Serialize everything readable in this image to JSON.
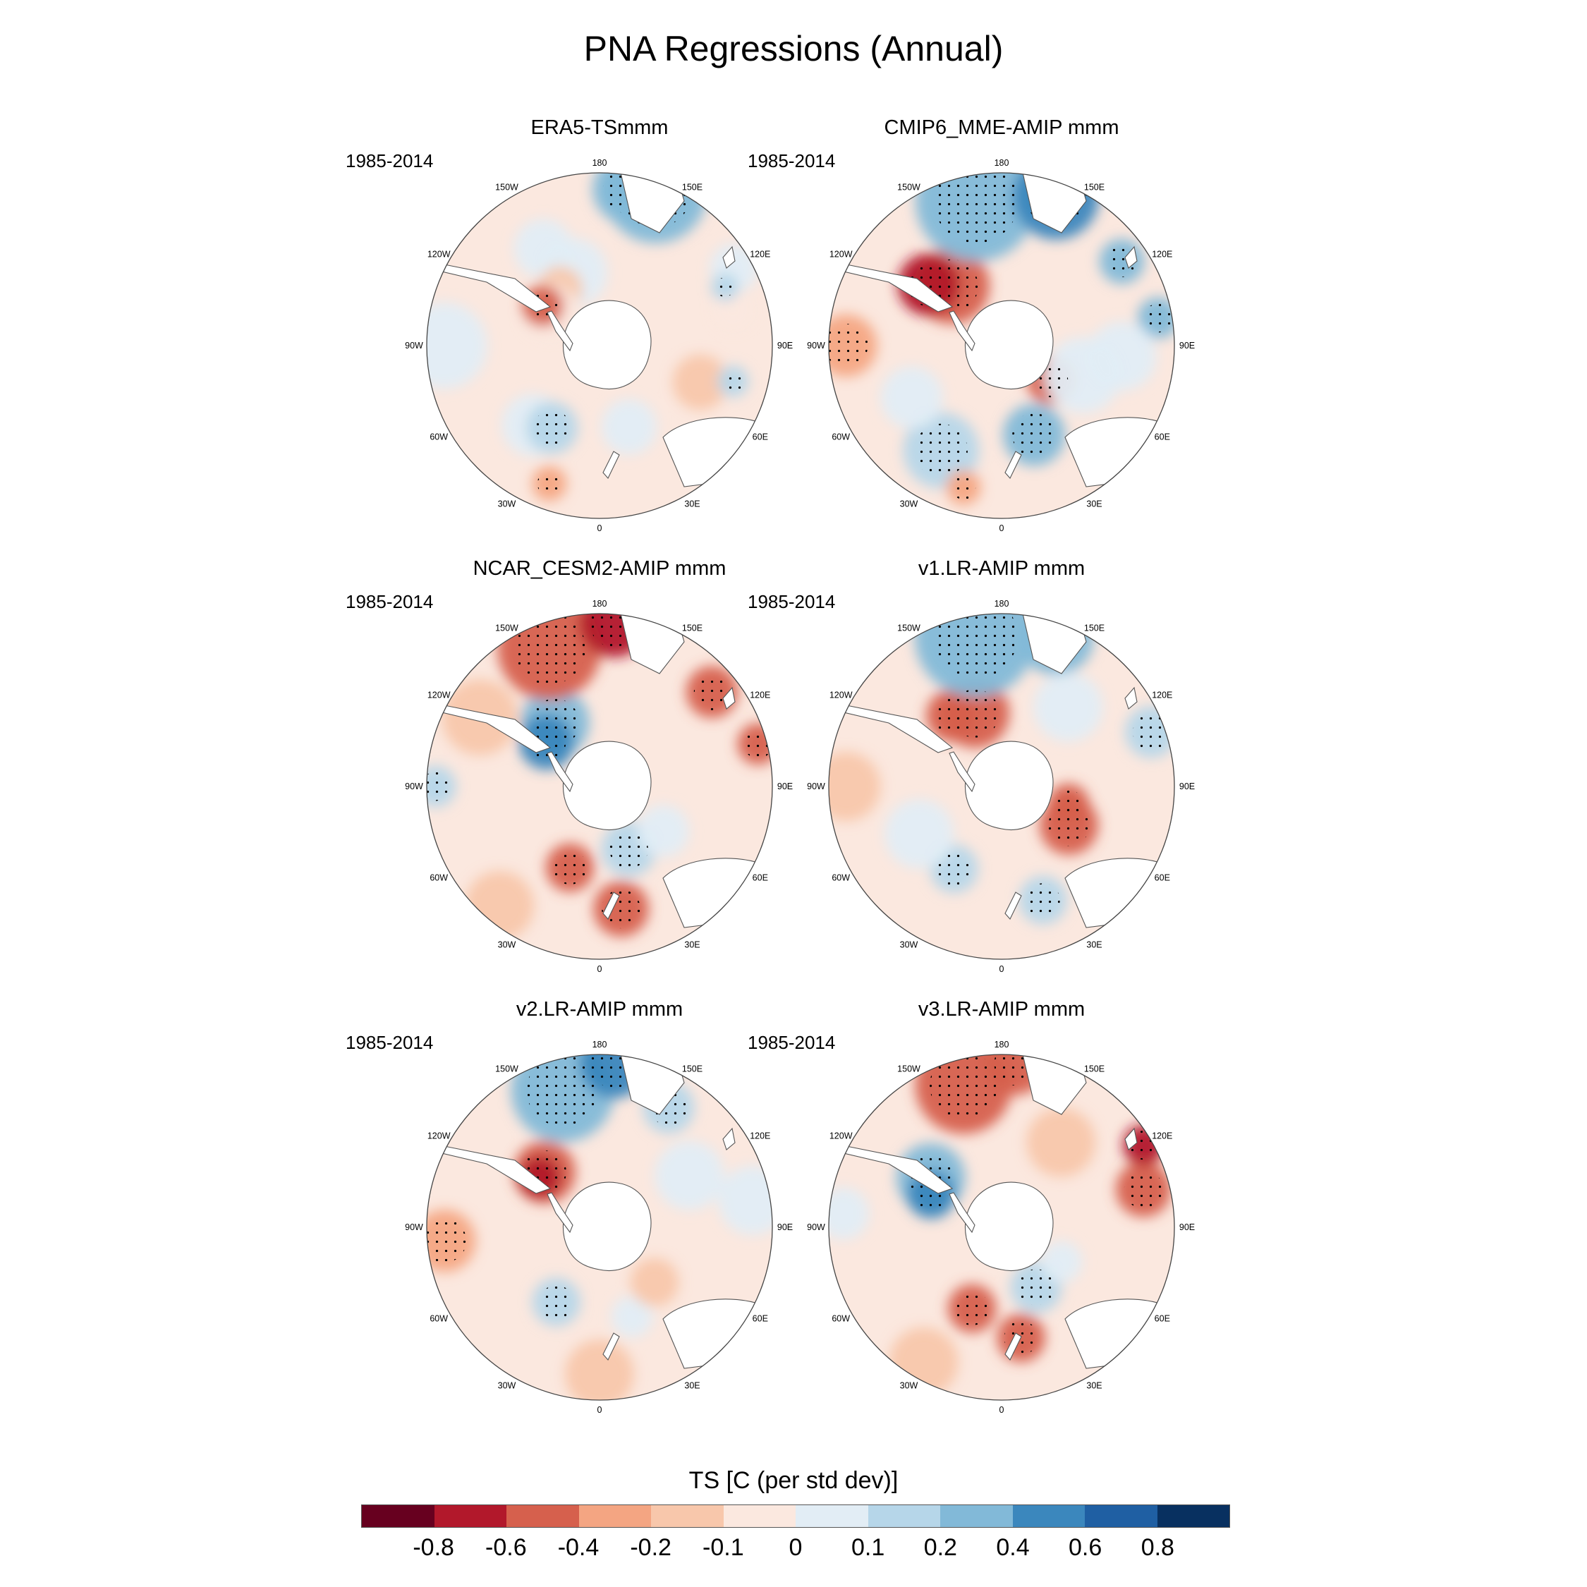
{
  "title": "PNA Regressions (Annual)",
  "panels": [
    {
      "id": "era5",
      "title": "ERA5-TSmmm",
      "period": "1985-2014"
    },
    {
      "id": "cmip6",
      "title": "CMIP6_MME-AMIP  mmm",
      "period": "1985-2014"
    },
    {
      "id": "ncar",
      "title": "NCAR_CESM2-AMIP  mmm",
      "period": "1985-2014"
    },
    {
      "id": "v1",
      "title": "v1.LR-AMIP  mmm",
      "period": "1985-2014"
    },
    {
      "id": "v2",
      "title": "v2.LR-AMIP  mmm",
      "period": "1985-2014"
    },
    {
      "id": "v3",
      "title": "v3.LR-AMIP  mmm",
      "period": "1985-2014"
    }
  ],
  "longitude_labels": [
    "0",
    "30E",
    "60E",
    "90E",
    "120E",
    "150E",
    "180",
    "150W",
    "120W",
    "90W",
    "60W",
    "30W"
  ],
  "colorbar": {
    "title": "TS [C (per std dev)]",
    "tick_labels": [
      "-0.8",
      "-0.6",
      "-0.4",
      "-0.2",
      "-0.1",
      "0",
      "0.1",
      "0.2",
      "0.4",
      "0.6",
      "0.8"
    ],
    "colors": [
      "#67001f",
      "#b2182b",
      "#d6604d",
      "#f4a582",
      "#f8c7ab",
      "#fbe8df",
      "#e2edf5",
      "#b6d6e9",
      "#82b9d8",
      "#3b87bd",
      "#1f5fa3",
      "#083060"
    ]
  },
  "panel_data": [
    {
      "blobs": [
        {
          "lon": 70,
          "r": 0.62,
          "s": 0.16,
          "v": 1
        },
        {
          "lon": 200,
          "r": 0.45,
          "s": 0.2,
          "v": -1
        },
        {
          "lon": 210,
          "r": 0.65,
          "s": 0.17,
          "v": -1
        },
        {
          "lon": 215,
          "r": 0.4,
          "s": 0.13,
          "v": 1
        },
        {
          "lon": 235,
          "r": 0.35,
          "s": 0.16,
          "v": 0
        },
        {
          "lon": 235,
          "r": 0.4,
          "s": 0.12,
          "v": 3
        },
        {
          "lon": 120,
          "r": 0.9,
          "s": 0.14,
          "v": -1
        },
        {
          "lon": 105,
          "r": 0.8,
          "s": 0.11,
          "v": 0
        },
        {
          "lon": 115,
          "r": 0.8,
          "s": 0.08,
          "v": -2
        },
        {
          "lon": 160,
          "r": 0.95,
          "s": 0.3,
          "v": -3
        },
        {
          "lon": 170,
          "r": 0.92,
          "s": 0.2,
          "v": -3
        },
        {
          "lon": 340,
          "r": 0.85,
          "s": 0.1,
          "v": 2
        },
        {
          "lon": 320,
          "r": 0.6,
          "s": 0.18,
          "v": -1
        },
        {
          "lon": 330,
          "r": 0.55,
          "s": 0.15,
          "v": -2
        },
        {
          "lon": 270,
          "r": 0.9,
          "s": 0.25,
          "v": -1
        },
        {
          "lon": 20,
          "r": 0.5,
          "s": 0.16,
          "v": -1
        },
        {
          "lon": 75,
          "r": 0.8,
          "s": 0.09,
          "v": -2
        }
      ]
    },
    {
      "blobs": [
        {
          "lon": 330,
          "r": 0.7,
          "s": 0.22,
          "v": -2
        },
        {
          "lon": 20,
          "r": 0.55,
          "s": 0.18,
          "v": -3
        },
        {
          "lon": 55,
          "r": 0.35,
          "s": 0.14,
          "v": 3
        },
        {
          "lon": 70,
          "r": 0.5,
          "s": 0.22,
          "v": -1
        },
        {
          "lon": 220,
          "r": 0.45,
          "s": 0.22,
          "v": 3
        },
        {
          "lon": 230,
          "r": 0.55,
          "s": 0.18,
          "v": 4
        },
        {
          "lon": 190,
          "r": 0.85,
          "s": 0.35,
          "v": -3
        },
        {
          "lon": 160,
          "r": 0.92,
          "s": 0.25,
          "v": -4
        },
        {
          "lon": 125,
          "r": 0.85,
          "s": 0.13,
          "v": -3
        },
        {
          "lon": 100,
          "r": 0.92,
          "s": 0.12,
          "v": -3
        },
        {
          "lon": 270,
          "r": 0.9,
          "s": 0.18,
          "v": 2
        },
        {
          "lon": 345,
          "r": 0.85,
          "s": 0.1,
          "v": 2
        },
        {
          "lon": 300,
          "r": 0.6,
          "s": 0.18,
          "v": -1
        },
        {
          "lon": 85,
          "r": 0.7,
          "s": 0.2,
          "v": -1
        }
      ]
    },
    {
      "blobs": [
        {
          "lon": 10,
          "r": 0.72,
          "s": 0.16,
          "v": 3
        },
        {
          "lon": 340,
          "r": 0.5,
          "s": 0.14,
          "v": 3
        },
        {
          "lon": 25,
          "r": 0.4,
          "s": 0.16,
          "v": -2
        },
        {
          "lon": 55,
          "r": 0.45,
          "s": 0.15,
          "v": -1
        },
        {
          "lon": 215,
          "r": 0.45,
          "s": 0.2,
          "v": -3
        },
        {
          "lon": 230,
          "r": 0.4,
          "s": 0.16,
          "v": -4
        },
        {
          "lon": 200,
          "r": 0.85,
          "s": 0.3,
          "v": 3
        },
        {
          "lon": 175,
          "r": 0.95,
          "s": 0.2,
          "v": 4
        },
        {
          "lon": 130,
          "r": 0.85,
          "s": 0.15,
          "v": 3
        },
        {
          "lon": 105,
          "r": 0.95,
          "s": 0.12,
          "v": 3
        },
        {
          "lon": 270,
          "r": 0.95,
          "s": 0.12,
          "v": -2
        },
        {
          "lon": 240,
          "r": 0.8,
          "s": 0.22,
          "v": 1
        },
        {
          "lon": 320,
          "r": 0.9,
          "s": 0.2,
          "v": 1
        }
      ]
    },
    {
      "blobs": [
        {
          "lon": 20,
          "r": 0.7,
          "s": 0.14,
          "v": -2
        },
        {
          "lon": 330,
          "r": 0.55,
          "s": 0.14,
          "v": -2
        },
        {
          "lon": 60,
          "r": 0.45,
          "s": 0.17,
          "v": 3
        },
        {
          "lon": 75,
          "r": 0.4,
          "s": 0.12,
          "v": 3
        },
        {
          "lon": 200,
          "r": 0.45,
          "s": 0.2,
          "v": 3
        },
        {
          "lon": 215,
          "r": 0.5,
          "s": 0.15,
          "v": 3
        },
        {
          "lon": 190,
          "r": 0.88,
          "s": 0.35,
          "v": -3
        },
        {
          "lon": 160,
          "r": 0.92,
          "s": 0.22,
          "v": -3
        },
        {
          "lon": 110,
          "r": 0.92,
          "s": 0.15,
          "v": -2
        },
        {
          "lon": 270,
          "r": 0.9,
          "s": 0.2,
          "v": 1
        },
        {
          "lon": 300,
          "r": 0.55,
          "s": 0.2,
          "v": -1
        },
        {
          "lon": 140,
          "r": 0.6,
          "s": 0.2,
          "v": -1
        }
      ]
    },
    {
      "blobs": [
        {
          "lon": 330,
          "r": 0.5,
          "s": 0.14,
          "v": -2
        },
        {
          "lon": 20,
          "r": 0.55,
          "s": 0.12,
          "v": -1
        },
        {
          "lon": 45,
          "r": 0.45,
          "s": 0.14,
          "v": 1
        },
        {
          "lon": 225,
          "r": 0.45,
          "s": 0.18,
          "v": 3
        },
        {
          "lon": 230,
          "r": 0.45,
          "s": 0.12,
          "v": 4
        },
        {
          "lon": 195,
          "r": 0.82,
          "s": 0.3,
          "v": -3
        },
        {
          "lon": 175,
          "r": 0.95,
          "s": 0.2,
          "v": -4
        },
        {
          "lon": 150,
          "r": 0.8,
          "s": 0.15,
          "v": -2
        },
        {
          "lon": 275,
          "r": 0.9,
          "s": 0.18,
          "v": 2
        },
        {
          "lon": 0,
          "r": 0.85,
          "s": 0.2,
          "v": 1
        },
        {
          "lon": 120,
          "r": 0.6,
          "s": 0.2,
          "v": -1
        },
        {
          "lon": 100,
          "r": 0.9,
          "s": 0.2,
          "v": -1
        }
      ]
    },
    {
      "blobs": [
        {
          "lon": 10,
          "r": 0.65,
          "s": 0.14,
          "v": 3
        },
        {
          "lon": 340,
          "r": 0.5,
          "s": 0.14,
          "v": 3
        },
        {
          "lon": 30,
          "r": 0.4,
          "s": 0.15,
          "v": -2
        },
        {
          "lon": 60,
          "r": 0.4,
          "s": 0.12,
          "v": -1
        },
        {
          "lon": 235,
          "r": 0.5,
          "s": 0.2,
          "v": -3
        },
        {
          "lon": 245,
          "r": 0.45,
          "s": 0.14,
          "v": -4
        },
        {
          "lon": 195,
          "r": 0.85,
          "s": 0.28,
          "v": 3
        },
        {
          "lon": 175,
          "r": 0.95,
          "s": 0.18,
          "v": 3
        },
        {
          "lon": 105,
          "r": 0.85,
          "s": 0.16,
          "v": 3
        },
        {
          "lon": 120,
          "r": 0.95,
          "s": 0.12,
          "v": 4
        },
        {
          "lon": 265,
          "r": 0.92,
          "s": 0.15,
          "v": -1
        },
        {
          "lon": 330,
          "r": 0.9,
          "s": 0.2,
          "v": 1
        },
        {
          "lon": 145,
          "r": 0.6,
          "s": 0.2,
          "v": 1
        }
      ]
    }
  ]
}
